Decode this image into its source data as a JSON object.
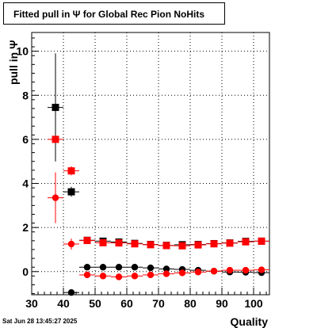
{
  "title": "Fitted pull in  Ψ  for Global Rec Pion NoHits",
  "timestamp": "Sat Jun 28 13:45:27 2025",
  "chart_data": {
    "type": "scatter",
    "title": "Fitted pull in  Ψ  for Global Rec Pion NoHits",
    "xlabel": "Quality",
    "ylabel": "pull in  Ψ",
    "xlim": [
      30,
      105
    ],
    "ylim": [
      -1.05,
      10.85
    ],
    "xticks": [
      30,
      40,
      50,
      60,
      70,
      80,
      90,
      100
    ],
    "xtick_labels": [
      "30",
      "40",
      "50",
      "60",
      "70",
      "80",
      "90",
      "100"
    ],
    "yticks": [
      0,
      2,
      4,
      6,
      8,
      10
    ],
    "ytick_labels": [
      "0",
      "2",
      "4",
      "6",
      "8",
      "10"
    ],
    "grid": true,
    "series": [
      {
        "marker": "square",
        "color": "#000000",
        "points": [
          {
            "x": 37.5,
            "y": 7.45,
            "ylo": 5.0,
            "yhi": 9.9
          },
          {
            "x": 42.5,
            "y": 3.62,
            "ylo": 3.4,
            "yhi": 3.85
          },
          {
            "x": 47.5,
            "y": 1.42,
            "ylo": 1.37,
            "yhi": 1.47
          },
          {
            "x": 52.5,
            "y": 1.38,
            "ylo": 1.34,
            "yhi": 1.42
          },
          {
            "x": 57.5,
            "y": 1.34,
            "ylo": 1.3,
            "yhi": 1.38
          },
          {
            "x": 62.5,
            "y": 1.28,
            "ylo": 1.24,
            "yhi": 1.32
          },
          {
            "x": 67.5,
            "y": 1.23,
            "ylo": 1.19,
            "yhi": 1.27
          },
          {
            "x": 72.5,
            "y": 1.19,
            "ylo": 1.15,
            "yhi": 1.23
          },
          {
            "x": 77.5,
            "y": 1.22,
            "ylo": 1.18,
            "yhi": 1.26
          },
          {
            "x": 82.5,
            "y": 1.23,
            "ylo": 1.19,
            "yhi": 1.27
          },
          {
            "x": 87.5,
            "y": 1.27,
            "ylo": 1.23,
            "yhi": 1.31
          },
          {
            "x": 92.5,
            "y": 1.3,
            "ylo": 1.26,
            "yhi": 1.34
          },
          {
            "x": 97.5,
            "y": 1.37,
            "ylo": 1.33,
            "yhi": 1.41
          },
          {
            "x": 102.5,
            "y": 1.38,
            "ylo": 1.34,
            "yhi": 1.42
          }
        ]
      },
      {
        "marker": "square",
        "color": "#ff0000",
        "points": [
          {
            "x": 37.5,
            "y": 6.0,
            "ylo": 6.0,
            "yhi": 6.0
          },
          {
            "x": 42.5,
            "y": 4.57,
            "ylo": 4.37,
            "yhi": 4.78
          },
          {
            "x": 47.5,
            "y": 1.41,
            "ylo": 1.36,
            "yhi": 1.46
          },
          {
            "x": 52.5,
            "y": 1.31,
            "ylo": 1.27,
            "yhi": 1.35
          },
          {
            "x": 57.5,
            "y": 1.3,
            "ylo": 1.26,
            "yhi": 1.34
          },
          {
            "x": 62.5,
            "y": 1.26,
            "ylo": 1.22,
            "yhi": 1.3
          },
          {
            "x": 67.5,
            "y": 1.22,
            "ylo": 1.18,
            "yhi": 1.26
          },
          {
            "x": 72.5,
            "y": 1.18,
            "ylo": 1.14,
            "yhi": 1.22
          },
          {
            "x": 77.5,
            "y": 1.17,
            "ylo": 1.13,
            "yhi": 1.21
          },
          {
            "x": 82.5,
            "y": 1.21,
            "ylo": 1.17,
            "yhi": 1.25
          },
          {
            "x": 87.5,
            "y": 1.26,
            "ylo": 1.22,
            "yhi": 1.3
          },
          {
            "x": 92.5,
            "y": 1.29,
            "ylo": 1.25,
            "yhi": 1.33
          },
          {
            "x": 97.5,
            "y": 1.35,
            "ylo": 1.31,
            "yhi": 1.39
          },
          {
            "x": 102.5,
            "y": 1.38,
            "ylo": 1.34,
            "yhi": 1.42
          }
        ]
      },
      {
        "marker": "diamond",
        "color": "#000000",
        "points": [
          {
            "x": 42.5,
            "y": -0.95,
            "ylo": -1.05,
            "yhi": -0.85
          },
          {
            "x": 47.5,
            "y": 0.2,
            "ylo": 0.15,
            "yhi": 0.25
          },
          {
            "x": 52.5,
            "y": 0.2,
            "ylo": 0.16,
            "yhi": 0.24
          },
          {
            "x": 57.5,
            "y": 0.2,
            "ylo": 0.16,
            "yhi": 0.24
          },
          {
            "x": 62.5,
            "y": 0.2,
            "ylo": 0.16,
            "yhi": 0.24
          },
          {
            "x": 67.5,
            "y": 0.17,
            "ylo": 0.13,
            "yhi": 0.21
          },
          {
            "x": 72.5,
            "y": 0.12,
            "ylo": 0.08,
            "yhi": 0.16
          },
          {
            "x": 77.5,
            "y": 0.1,
            "ylo": 0.06,
            "yhi": 0.14
          },
          {
            "x": 82.5,
            "y": 0.06,
            "ylo": 0.02,
            "yhi": 0.1
          },
          {
            "x": 87.5,
            "y": 0.02,
            "ylo": -0.02,
            "yhi": 0.06
          },
          {
            "x": 92.5,
            "y": -0.02,
            "ylo": -0.06,
            "yhi": 0.02
          },
          {
            "x": 97.5,
            "y": -0.03,
            "ylo": -0.07,
            "yhi": 0.01
          },
          {
            "x": 102.5,
            "y": -0.05,
            "ylo": -0.09,
            "yhi": -0.01
          }
        ]
      },
      {
        "marker": "diamond",
        "color": "#ff0000",
        "points": [
          {
            "x": 37.5,
            "y": 3.35,
            "ylo": 2.2,
            "yhi": 4.5
          },
          {
            "x": 42.5,
            "y": 1.25,
            "ylo": 1.0,
            "yhi": 1.5
          },
          {
            "x": 47.5,
            "y": -0.15,
            "ylo": -0.2,
            "yhi": -0.1
          },
          {
            "x": 52.5,
            "y": -0.2,
            "ylo": -0.24,
            "yhi": -0.16
          },
          {
            "x": 57.5,
            "y": -0.24,
            "ylo": -0.28,
            "yhi": -0.2
          },
          {
            "x": 62.5,
            "y": -0.2,
            "ylo": -0.24,
            "yhi": -0.16
          },
          {
            "x": 67.5,
            "y": -0.15,
            "ylo": -0.19,
            "yhi": -0.11
          },
          {
            "x": 72.5,
            "y": -0.1,
            "ylo": -0.14,
            "yhi": -0.06
          },
          {
            "x": 77.5,
            "y": -0.06,
            "ylo": -0.1,
            "yhi": -0.02
          },
          {
            "x": 82.5,
            "y": -0.02,
            "ylo": -0.06,
            "yhi": 0.02
          },
          {
            "x": 87.5,
            "y": 0.02,
            "ylo": -0.02,
            "yhi": 0.06
          },
          {
            "x": 92.5,
            "y": 0.06,
            "ylo": 0.02,
            "yhi": 0.1
          },
          {
            "x": 97.5,
            "y": 0.06,
            "ylo": 0.02,
            "yhi": 0.1
          },
          {
            "x": 102.5,
            "y": 0.08,
            "ylo": 0.04,
            "yhi": 0.12
          }
        ]
      }
    ]
  }
}
